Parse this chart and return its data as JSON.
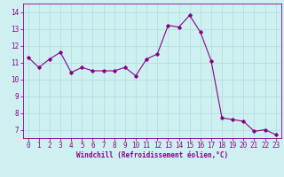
{
  "x": [
    0,
    1,
    2,
    3,
    4,
    5,
    6,
    7,
    8,
    9,
    10,
    11,
    12,
    13,
    14,
    15,
    16,
    17,
    18,
    19,
    20,
    21,
    22,
    23
  ],
  "y": [
    11.3,
    10.7,
    11.2,
    11.6,
    10.4,
    10.7,
    10.5,
    10.5,
    10.5,
    10.7,
    10.2,
    11.2,
    11.5,
    13.2,
    13.1,
    13.8,
    12.8,
    11.1,
    7.7,
    7.6,
    7.5,
    6.9,
    7.0,
    6.7
  ],
  "line_color": "#880088",
  "marker": "D",
  "markersize": 1.8,
  "linewidth": 0.8,
  "bg_color": "#cff0f0",
  "grid_color": "#aadddd",
  "xlabel": "Windchill (Refroidissement éolien,°C)",
  "xlabel_color": "#880088",
  "tick_color": "#880088",
  "ylim": [
    6.5,
    14.5
  ],
  "xlim": [
    -0.5,
    23.5
  ],
  "yticks": [
    7,
    8,
    9,
    10,
    11,
    12,
    13,
    14
  ],
  "xticks": [
    0,
    1,
    2,
    3,
    4,
    5,
    6,
    7,
    8,
    9,
    10,
    11,
    12,
    13,
    14,
    15,
    16,
    17,
    18,
    19,
    20,
    21,
    22,
    23
  ],
  "tick_fontsize": 5.5,
  "xlabel_fontsize": 5.5,
  "figwidth": 3.2,
  "figheight": 2.0,
  "dpi": 100
}
